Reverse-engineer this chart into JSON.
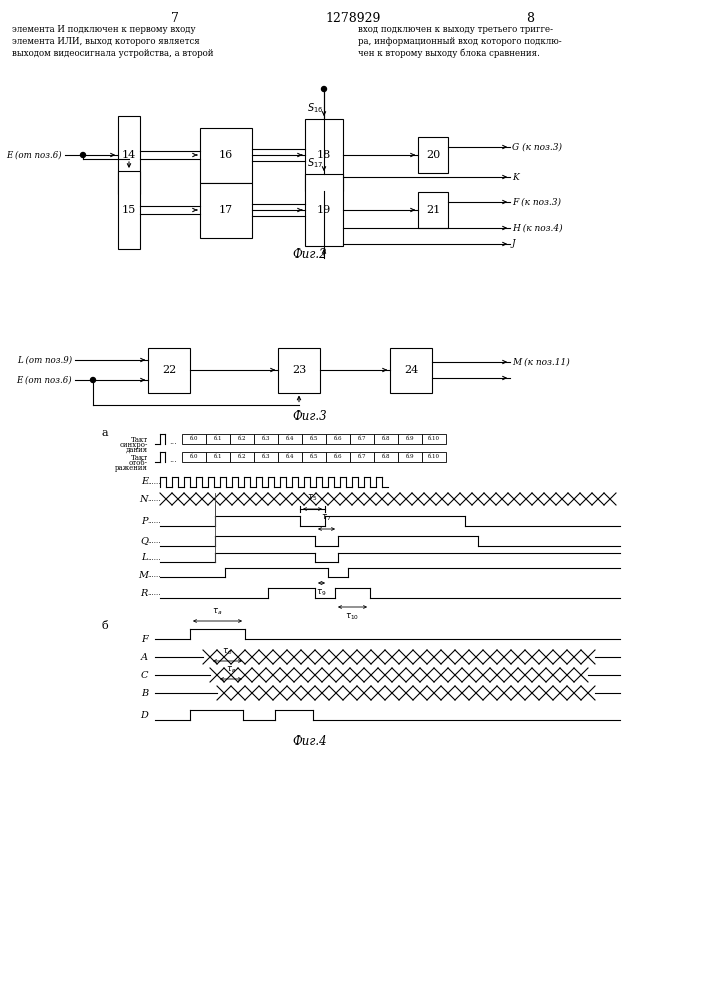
{
  "title": "1278929",
  "page_left": "7",
  "page_right": "8",
  "text_left": "элемента И подключен к первому входу\nэлемента ИЛИ, выход которого является\nвыходом видеосигнала устройства, а второй",
  "text_right": "вход подключен к выходу третьего тригге-\nра, информационный вход которого подклю-\nчен к второму выходу блока сравнения.",
  "fig2_caption": "Фиг.2",
  "fig3_caption": "Фиг.3",
  "fig4_caption": "Фиг.4",
  "background": "#ffffff",
  "line_color": "#000000"
}
